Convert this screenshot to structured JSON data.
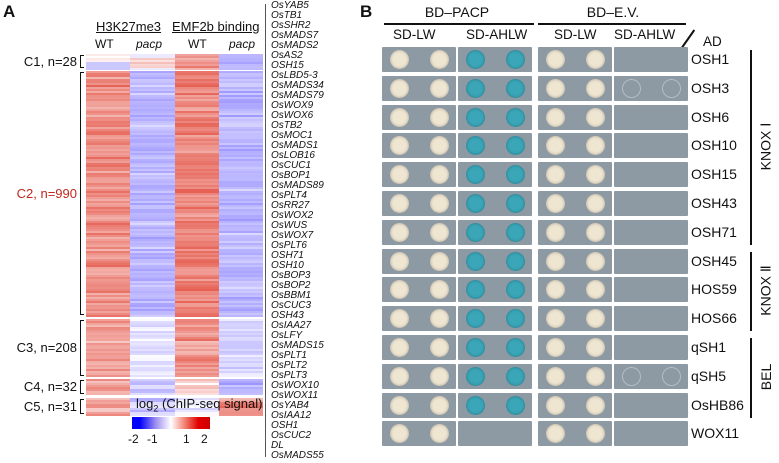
{
  "panel_a": {
    "letter": "A",
    "headers": [
      {
        "title": "H3K27me3",
        "cols": [
          "WT",
          "pacp"
        ]
      },
      {
        "title": "EMF2b binding",
        "cols": [
          "WT",
          "pacp"
        ]
      }
    ],
    "clusters": [
      {
        "label": "C1, n=28",
        "highlight": false,
        "means": [
          0.2,
          0.6,
          1.1,
          -1.0
        ]
      },
      {
        "label": "C2, n=990",
        "highlight": true,
        "means": [
          1.2,
          -1.0,
          1.3,
          -1.0
        ]
      },
      {
        "label": "C3, n=208",
        "highlight": false,
        "means": [
          1.0,
          -0.4,
          1.1,
          -0.6
        ]
      },
      {
        "label": "C4, n=32",
        "highlight": false,
        "means": [
          0.9,
          -0.8,
          0.4,
          -1.2
        ]
      },
      {
        "label": "C5, n=31",
        "highlight": false,
        "means": [
          1.0,
          -0.8,
          -0.3,
          1.2
        ]
      }
    ],
    "genes": [
      "OsYAB5",
      "OsTB1",
      "OsSHR2",
      "OsMADS7",
      "OsMADS2",
      "OsAS2",
      "OSH15",
      "OsLBD5-3",
      "OsMADS34",
      "OsMADS79",
      "OsWOX9",
      "OsWOX6",
      "OsTB2",
      "OsMOC1",
      "OsMADS1",
      "OsLOB16",
      "OsCUC1",
      "OsBOP1",
      "OsMADS89",
      "OsPLT4",
      "OsRR27",
      "OsWOX2",
      "OsWUS",
      "OsWOX7",
      "OsPLT6",
      "OSH71",
      "OSH10",
      "OsBOP3",
      "OsBOP2",
      "OsBBM1",
      "OsCUC3",
      "OSH43",
      "OsIAA27",
      "OsLFY",
      "OsMADS15",
      "OsPLT1",
      "OsPLT2",
      "OsPLT3",
      "OsWOX10",
      "OsWOX11",
      "OsYAB4",
      "OsIAA12",
      "OSH1",
      "OsCUC2",
      "DL",
      "OsMADS55"
    ],
    "colorbar": {
      "title_pre": "log",
      "title_sub": "2",
      "title_post": " (ChIP-seq signal)",
      "ticks": [
        "-2",
        "-1",
        "1",
        "2"
      ],
      "colors": [
        "#0000ff",
        "#ffffff",
        "#ff0000"
      ]
    }
  },
  "panel_b": {
    "letter": "B",
    "baits": [
      "BD–PACP",
      "BD–E.V."
    ],
    "media": [
      "SD-LW",
      "SD-AHLW",
      "SD-LW",
      "SD-AHLW"
    ],
    "ad_label": "AD",
    "rows": [
      {
        "name": "OSH1",
        "growth": [
          1,
          1,
          1,
          0
        ]
      },
      {
        "name": "OSH3",
        "growth": [
          1,
          1,
          1,
          0.2
        ]
      },
      {
        "name": "OSH6",
        "growth": [
          1,
          1,
          1,
          0
        ]
      },
      {
        "name": "OSH10",
        "growth": [
          1,
          1,
          1,
          0
        ]
      },
      {
        "name": "OSH15",
        "growth": [
          1,
          1,
          1,
          0
        ]
      },
      {
        "name": "OSH43",
        "growth": [
          1,
          1,
          1,
          0
        ]
      },
      {
        "name": "OSH71",
        "growth": [
          1,
          1,
          1,
          0
        ]
      },
      {
        "name": "OSH45",
        "growth": [
          1,
          1,
          1,
          0
        ]
      },
      {
        "name": "HOS59",
        "growth": [
          1,
          1,
          1,
          0
        ]
      },
      {
        "name": "HOS66",
        "growth": [
          1,
          1,
          1,
          0
        ]
      },
      {
        "name": "qSH1",
        "growth": [
          1,
          1,
          1,
          0
        ]
      },
      {
        "name": "qSH5",
        "growth": [
          1,
          1,
          1,
          0.2
        ]
      },
      {
        "name": "OsHB86",
        "growth": [
          1,
          1,
          1,
          0
        ]
      },
      {
        "name": "WOX11",
        "growth": [
          1,
          0,
          1,
          0
        ]
      }
    ],
    "groups": [
      {
        "label": "KNOX Ⅰ",
        "from": 0,
        "to": 6
      },
      {
        "label": "KNOX Ⅱ",
        "from": 7,
        "to": 9
      },
      {
        "label": "BEL",
        "from": 10,
        "to": 12
      }
    ],
    "colors": {
      "plate": "#8d9aa4",
      "colony": "#efe6d2",
      "blue": "#3aa6b8"
    }
  }
}
